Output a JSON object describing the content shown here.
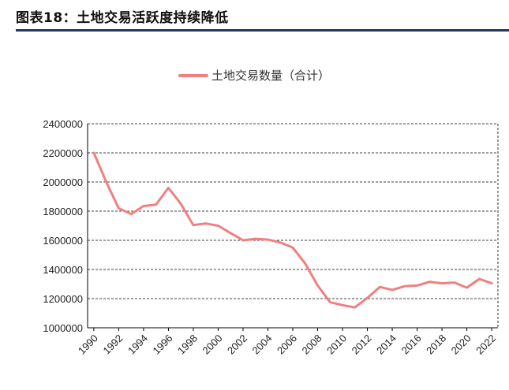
{
  "figure": {
    "title": "图表18：土地交易活跃度持续降低"
  },
  "colors": {
    "series": "#f08080",
    "title_rule": "#1f3a5a",
    "grid": "#000000"
  },
  "chart_data": {
    "type": "line",
    "title": "",
    "xlabel": "",
    "ylabel": "",
    "x": [
      1990,
      1991,
      1992,
      1993,
      1994,
      1995,
      1996,
      1997,
      1998,
      1999,
      2000,
      2001,
      2002,
      2003,
      2004,
      2005,
      2006,
      2007,
      2008,
      2009,
      2010,
      2011,
      2012,
      2013,
      2014,
      2015,
      2016,
      2017,
      2018,
      2019,
      2020,
      2021,
      2022
    ],
    "x_tick_labels": [
      "1990",
      "1992",
      "1994",
      "1996",
      "1998",
      "2000",
      "2002",
      "2004",
      "2006",
      "2008",
      "2010",
      "2012",
      "2014",
      "2016",
      "2018",
      "2020",
      "2022"
    ],
    "ylim": [
      1000000,
      2400000
    ],
    "y_ticks": [
      1000000,
      1200000,
      1400000,
      1600000,
      1800000,
      2000000,
      2200000,
      2400000
    ],
    "y_tick_labels": [
      "1000000",
      "1200000",
      "1400000",
      "1600000",
      "1800000",
      "2000000",
      "2200000",
      "2400000"
    ],
    "grid": "horizontal-dashed",
    "legend_position": "top-center",
    "series": [
      {
        "name": "土地交易数量（合计）",
        "values": [
          2200000,
          2000000,
          1820000,
          1780000,
          1835000,
          1845000,
          1960000,
          1850000,
          1705000,
          1715000,
          1700000,
          1650000,
          1600000,
          1610000,
          1605000,
          1585000,
          1550000,
          1440000,
          1290000,
          1175000,
          1155000,
          1140000,
          1205000,
          1280000,
          1260000,
          1285000,
          1290000,
          1315000,
          1305000,
          1310000,
          1275000,
          1335000,
          1305000
        ]
      }
    ]
  }
}
